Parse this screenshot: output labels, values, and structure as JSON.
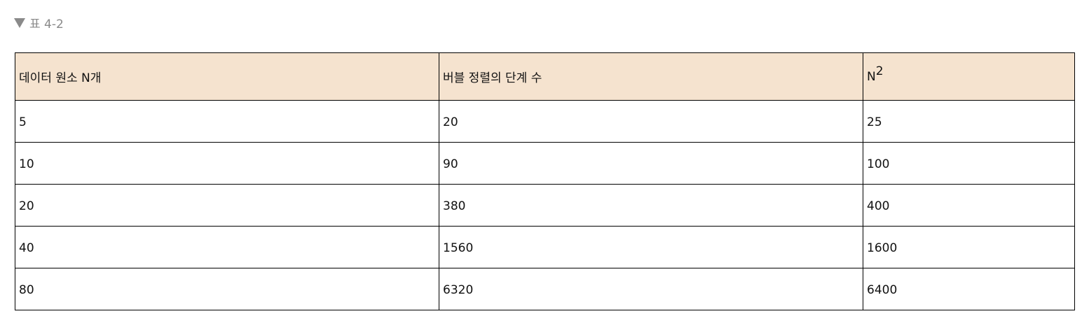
{
  "caption": {
    "icon": "triangle-down-icon",
    "text": "표 4-2"
  },
  "table": {
    "header_bg": "#f5e3cf",
    "columns": [
      {
        "label": "데이터 원소 N개"
      },
      {
        "label": "버블 정렬의 단계 수"
      },
      {
        "label": "N",
        "superscript": "2"
      }
    ],
    "rows": [
      [
        "5",
        "20",
        "25"
      ],
      [
        "10",
        "90",
        "100"
      ],
      [
        "20",
        "380",
        "400"
      ],
      [
        "40",
        "1560",
        "1600"
      ],
      [
        "80",
        "6320",
        "6400"
      ]
    ]
  }
}
